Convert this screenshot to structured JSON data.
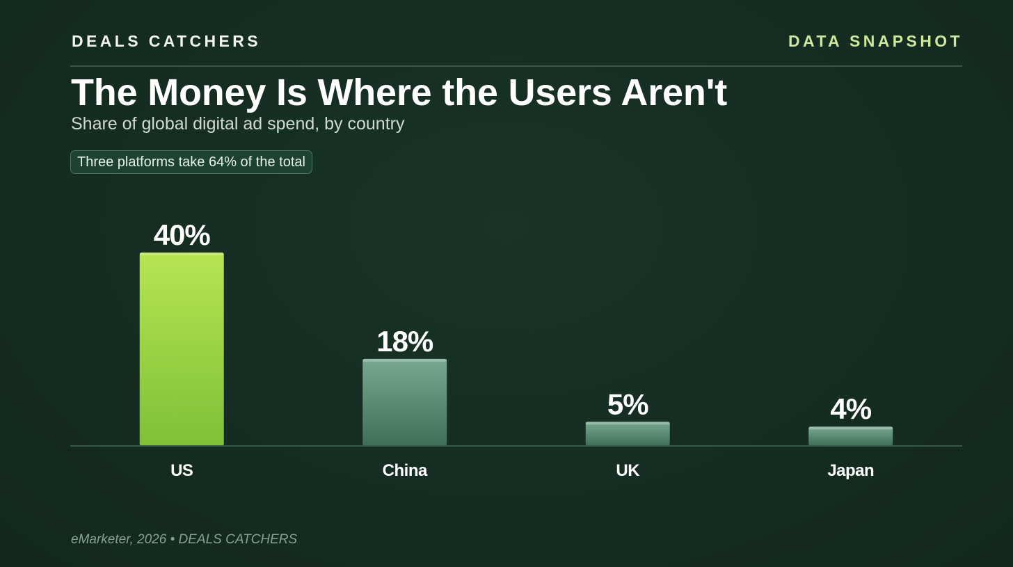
{
  "header": {
    "brand": "DEALS CATCHERS",
    "tag": "DATA SNAPSHOT"
  },
  "chart_data": {
    "type": "bar",
    "title": "The Money Is Where the Users Aren't",
    "subtitle": "Share of global digital ad spend, by country",
    "annotation": "Three platforms take 64% of the total",
    "categories": [
      "US",
      "China",
      "UK",
      "Japan"
    ],
    "values": [
      40,
      18,
      5,
      4
    ],
    "value_labels": [
      "40%",
      "18%",
      "5%",
      "4%"
    ],
    "unit": "%",
    "ylim": [
      0,
      40
    ],
    "grid": false,
    "highlight_category": "US",
    "colors": {
      "highlight_top": "#b6e553",
      "highlight_bottom": "#7fc037",
      "default_top": "#79a891",
      "default_bottom": "#3f6f58",
      "baseline": "#35584a"
    }
  },
  "footer": {
    "source": "eMarketer, 2026 • DEALS CATCHERS"
  }
}
